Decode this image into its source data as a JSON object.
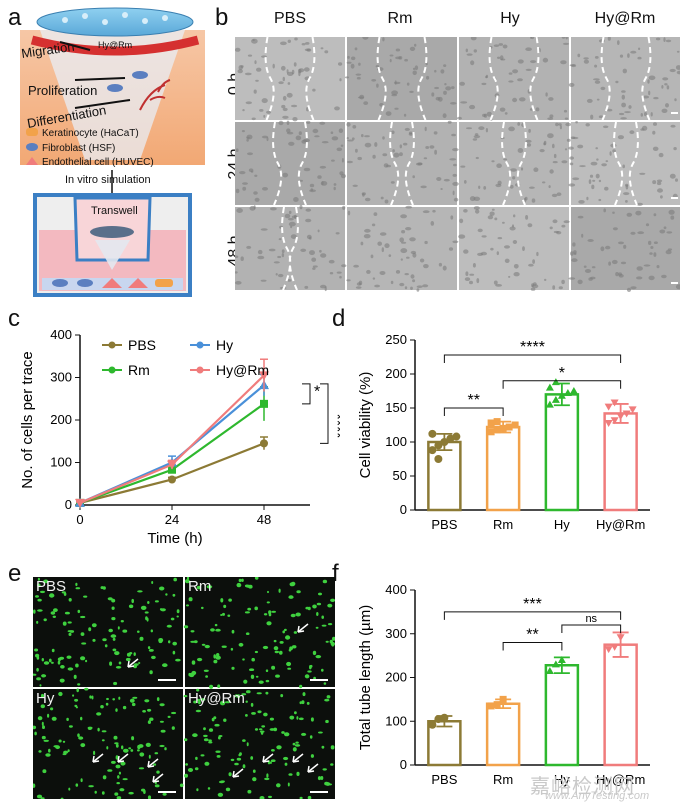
{
  "panels": {
    "a": "a",
    "b": "b",
    "c": "c",
    "d": "d",
    "e": "e",
    "f": "f"
  },
  "schematic": {
    "patch_label": "Hy@Rm",
    "steps": [
      "Migration",
      "Proliferation",
      "Differentiation"
    ],
    "legend": [
      "Keratinocyte (HaCaT)",
      "Fibroblast (HSF)",
      "Endothelial cell (HUVEC)"
    ],
    "simulation": "In vitro simulation",
    "transwell": "Transwell"
  },
  "scratch": {
    "columns": [
      "PBS",
      "Rm",
      "Hy",
      "Hy@Rm"
    ],
    "rows": [
      "0 h",
      "24 h",
      "48 h"
    ]
  },
  "chart_c": {
    "ylabel": "No. of cells per trace",
    "xlabel": "Time (h)",
    "legend": [
      "PBS",
      "Hy",
      "Rm",
      "Hy@Rm"
    ],
    "sig": [
      "*",
      "****"
    ]
  },
  "chart_d": {
    "ylabel": "Cell viability (%)",
    "sig": [
      "****",
      "**",
      "*"
    ]
  },
  "tube": {
    "labels": [
      "PBS",
      "Rm",
      "Hy",
      "Hy@Rm"
    ]
  },
  "chart_f": {
    "ylabel": "Total tube length (µm)",
    "sig": [
      "***",
      "**",
      "ns"
    ]
  },
  "watermark": {
    "cn": "嘉峪检测网",
    "en": "www.AnyTesting.com"
  },
  "chart_data": [
    {
      "type": "line",
      "x": [
        0,
        24,
        48
      ],
      "xticks": [
        "0",
        "24",
        "48"
      ],
      "xlim": [
        0,
        60
      ],
      "ylim": [
        0,
        400
      ],
      "yticks": [
        0,
        100,
        200,
        300,
        400
      ],
      "xlabel": "Time (h)",
      "ylabel": "No. of cells per trace",
      "series": [
        {
          "name": "PBS",
          "color": "#8c7a35",
          "marker": "circle",
          "values": [
            5,
            60,
            145
          ],
          "err": [
            2,
            5,
            15
          ]
        },
        {
          "name": "Rm",
          "color": "#2eb82e",
          "marker": "square",
          "values": [
            5,
            83,
            238
          ],
          "err": [
            2,
            8,
            40
          ]
        },
        {
          "name": "Hy",
          "color": "#4a90d9",
          "marker": "triangle",
          "values": [
            5,
            100,
            282
          ],
          "err": [
            2,
            15,
            25
          ]
        },
        {
          "name": "Hy@Rm",
          "color": "#f07c7c",
          "marker": "triangle-down",
          "values": [
            5,
            95,
            305
          ],
          "err": [
            2,
            10,
            38
          ]
        }
      ]
    },
    {
      "type": "bar",
      "categories": [
        "PBS",
        "Rm",
        "Hy",
        "Hy@Rm"
      ],
      "values": [
        100,
        122,
        170,
        142
      ],
      "err": [
        12,
        8,
        16,
        14
      ],
      "points": [
        [
          88,
          95,
          100,
          105,
          108,
          112,
          75
        ],
        [
          115,
          118,
          120,
          122,
          125,
          128,
          130
        ],
        [
          155,
          162,
          168,
          172,
          175,
          180,
          188
        ],
        [
          128,
          132,
          138,
          142,
          148,
          152,
          158
        ]
      ],
      "colors": [
        "#8c7a35",
        "#f2a24a",
        "#2eb82e",
        "#f07c7c"
      ],
      "ylim": [
        0,
        250
      ],
      "yticks": [
        0,
        50,
        100,
        150,
        200,
        250
      ],
      "ylabel": "Cell viability (%)"
    },
    {
      "type": "bar",
      "categories": [
        "PBS",
        "Rm",
        "Hy",
        "Hy@Rm"
      ],
      "values": [
        100,
        140,
        228,
        275
      ],
      "err": [
        12,
        10,
        18,
        28
      ],
      "points": [
        [
          92,
          105,
          108
        ],
        [
          135,
          138,
          150
        ],
        [
          215,
          230,
          240
        ],
        [
          265,
          270,
          292
        ]
      ],
      "colors": [
        "#8c7a35",
        "#f2a24a",
        "#2eb82e",
        "#f07c7c"
      ],
      "ylim": [
        0,
        400
      ],
      "yticks": [
        0,
        100,
        200,
        300,
        400
      ],
      "ylabel": "Total tube length (µm)"
    }
  ]
}
